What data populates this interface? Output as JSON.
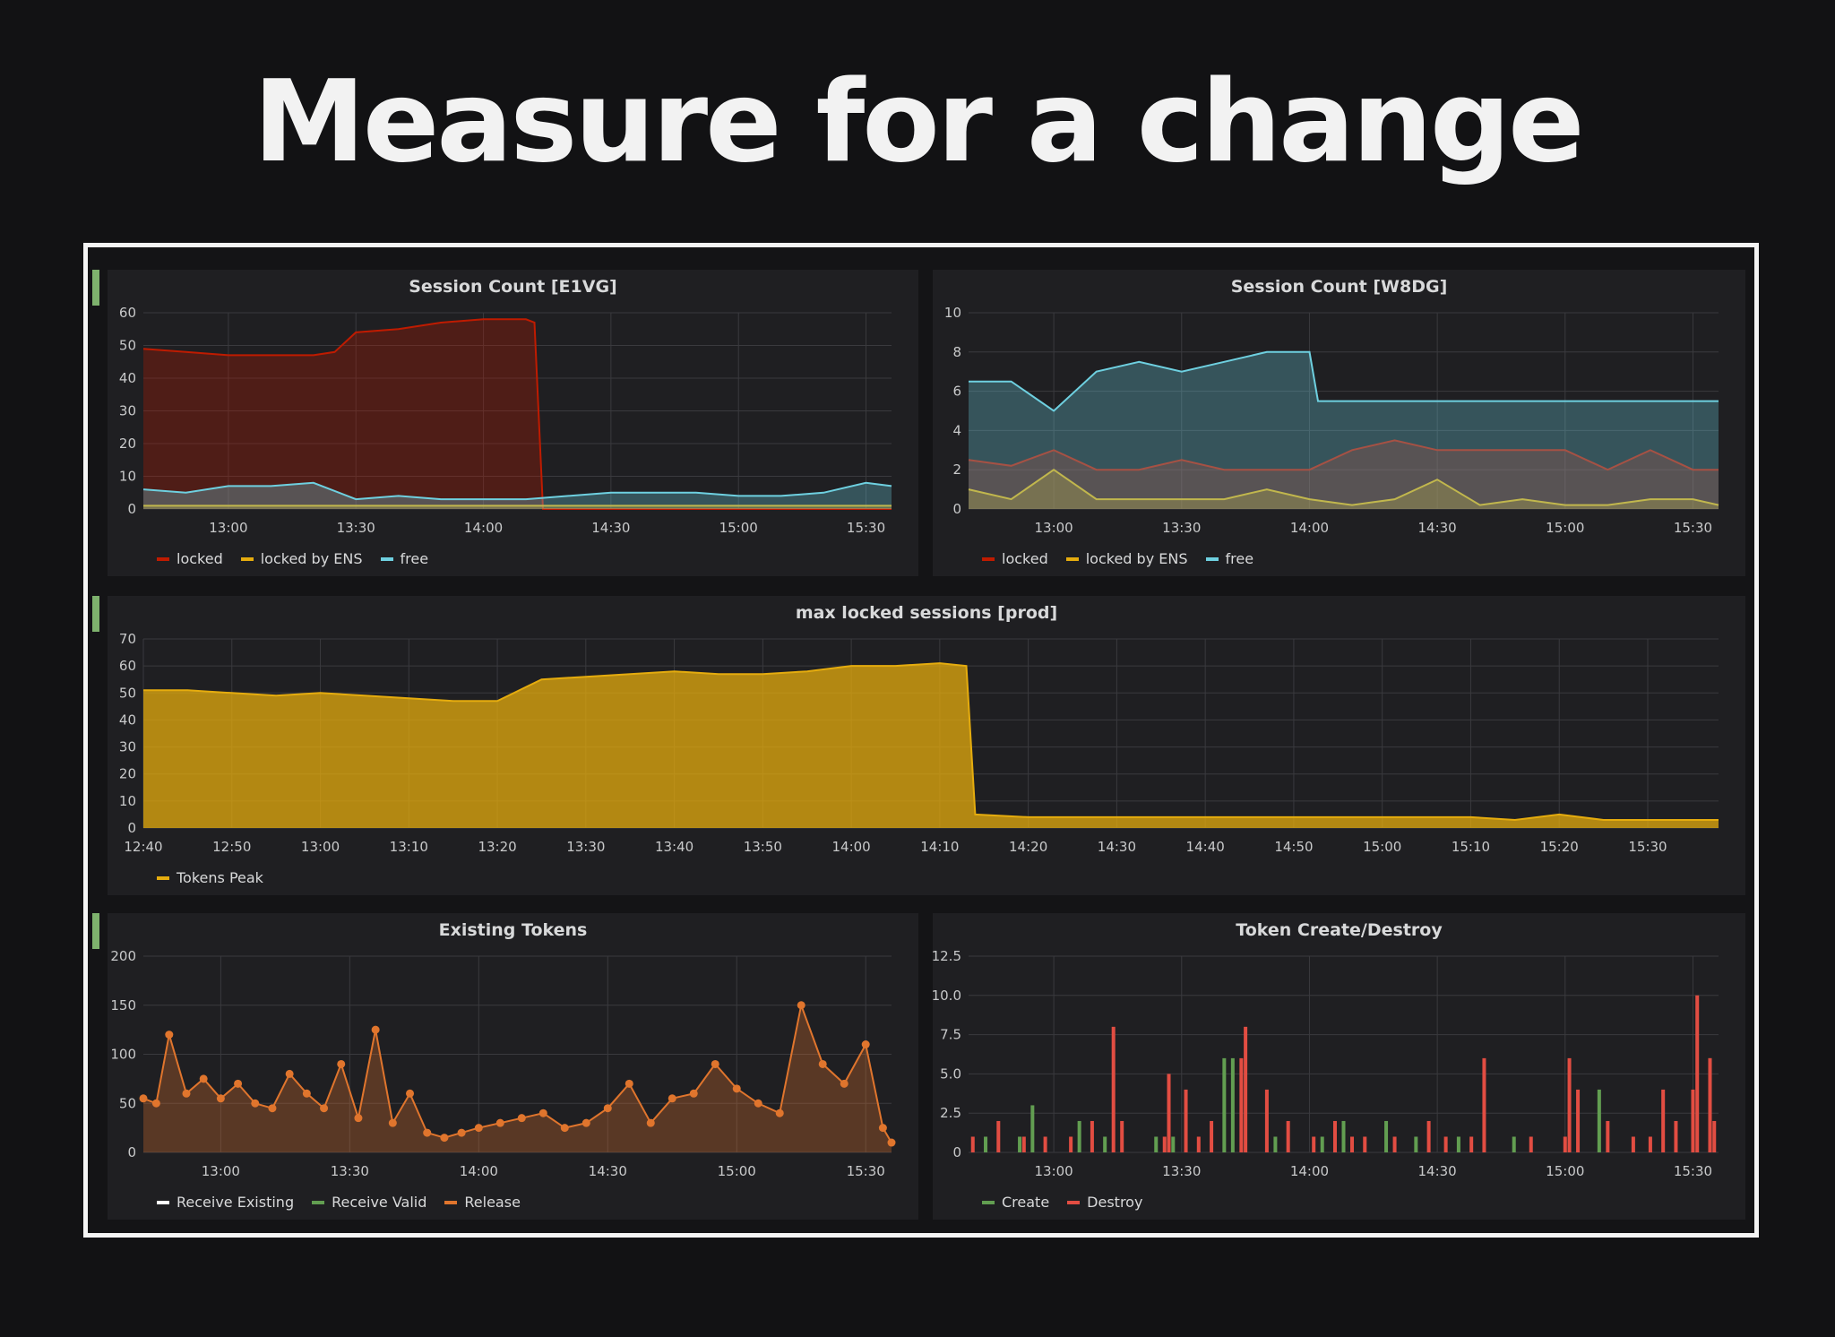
{
  "slide": {
    "title": "Measure for a change"
  },
  "colors": {
    "locked": "#bf1b00",
    "locked_by_ens": "#e5ac0e",
    "free": "#6ed0e0",
    "tokens_peak": "#e5ac0e",
    "receive_existing": "#ffffff",
    "receive_valid": "#629e51",
    "release": "#e0752d",
    "create": "#629e51",
    "destroy": "#e24d42",
    "row_marker": "#7eb26d"
  },
  "chart_data": [
    {
      "type": "area",
      "title": "Session Count [E1VG]",
      "xlabel": "",
      "ylabel": "",
      "x_start": "12:40",
      "x_end": "15:36",
      "xticks": [
        "13:00",
        "13:30",
        "14:00",
        "14:30",
        "15:00",
        "15:30"
      ],
      "yticks": [
        "0",
        "10",
        "20",
        "30",
        "40",
        "50",
        "60"
      ],
      "ylim": [
        0,
        60
      ],
      "grid": true,
      "legend": "bottom-left",
      "series": [
        {
          "name": "locked",
          "x": [
            "12:40",
            "12:50",
            "13:00",
            "13:10",
            "13:20",
            "13:25",
            "13:30",
            "13:40",
            "13:50",
            "14:00",
            "14:10",
            "14:12",
            "14:14",
            "14:20",
            "14:30",
            "14:40",
            "14:50",
            "15:00",
            "15:10",
            "15:20",
            "15:30",
            "15:36"
          ],
          "values": [
            49,
            48,
            47,
            47,
            47,
            48,
            54,
            55,
            57,
            58,
            58,
            57,
            0,
            0,
            0,
            0,
            0,
            0,
            0,
            0,
            0,
            0
          ]
        },
        {
          "name": "locked by ENS",
          "x": [
            "12:40",
            "13:00",
            "13:20",
            "13:40",
            "14:00",
            "14:20",
            "14:40",
            "15:00",
            "15:20",
            "15:36"
          ],
          "values": [
            1,
            1,
            1,
            1,
            1,
            1,
            1,
            1,
            1,
            1
          ]
        },
        {
          "name": "free",
          "x": [
            "12:40",
            "12:50",
            "13:00",
            "13:10",
            "13:20",
            "13:30",
            "13:40",
            "13:50",
            "14:00",
            "14:10",
            "14:20",
            "14:30",
            "14:40",
            "14:50",
            "15:00",
            "15:10",
            "15:20",
            "15:30",
            "15:36"
          ],
          "values": [
            6,
            5,
            7,
            7,
            8,
            3,
            4,
            3,
            3,
            3,
            4,
            5,
            5,
            5,
            4,
            4,
            5,
            8,
            7
          ]
        }
      ]
    },
    {
      "type": "area",
      "title": "Session Count [W8DG]",
      "xlabel": "",
      "ylabel": "",
      "x_start": "12:40",
      "x_end": "15:36",
      "xticks": [
        "13:00",
        "13:30",
        "14:00",
        "14:30",
        "15:00",
        "15:30"
      ],
      "yticks": [
        "0",
        "2",
        "4",
        "6",
        "8",
        "10"
      ],
      "ylim": [
        0,
        10
      ],
      "grid": true,
      "legend": "bottom-left",
      "series": [
        {
          "name": "locked",
          "x": [
            "12:40",
            "12:50",
            "13:00",
            "13:10",
            "13:20",
            "13:30",
            "13:40",
            "13:50",
            "14:00",
            "14:10",
            "14:20",
            "14:30",
            "14:40",
            "14:50",
            "15:00",
            "15:10",
            "15:20",
            "15:30",
            "15:36"
          ],
          "values": [
            2.5,
            2.2,
            3,
            2,
            2,
            2.5,
            2,
            2,
            2,
            3,
            3.5,
            3,
            3,
            3,
            3,
            2,
            3,
            2,
            2
          ]
        },
        {
          "name": "locked by ENS",
          "x": [
            "12:40",
            "12:50",
            "13:00",
            "13:10",
            "13:20",
            "13:30",
            "13:40",
            "13:50",
            "14:00",
            "14:10",
            "14:20",
            "14:30",
            "14:40",
            "14:50",
            "15:00",
            "15:10",
            "15:20",
            "15:30",
            "15:36"
          ],
          "values": [
            1,
            0.5,
            2,
            0.5,
            0.5,
            0.5,
            0.5,
            1,
            0.5,
            0.2,
            0.5,
            1.5,
            0.2,
            0.5,
            0.2,
            0.2,
            0.5,
            0.5,
            0.2
          ]
        },
        {
          "name": "free",
          "x": [
            "12:40",
            "12:50",
            "13:00",
            "13:10",
            "13:20",
            "13:30",
            "13:40",
            "13:50",
            "14:00",
            "14:02",
            "14:10",
            "14:20",
            "14:30",
            "14:40",
            "14:50",
            "15:00",
            "15:10",
            "15:20",
            "15:30",
            "15:36"
          ],
          "values": [
            6.5,
            6.5,
            5,
            7,
            7.5,
            7,
            7.5,
            8,
            8,
            5.5,
            5.5,
            5.5,
            5.5,
            5.5,
            5.5,
            5.5,
            5.5,
            5.5,
            5.5,
            5.5
          ]
        }
      ]
    },
    {
      "type": "area",
      "title": "max locked sessions [prod]",
      "xlabel": "",
      "ylabel": "",
      "x_start": "12:40",
      "x_end": "15:38",
      "xticks": [
        "12:40",
        "12:50",
        "13:00",
        "13:10",
        "13:20",
        "13:30",
        "13:40",
        "13:50",
        "14:00",
        "14:10",
        "14:20",
        "14:30",
        "14:40",
        "14:50",
        "15:00",
        "15:10",
        "15:20",
        "15:30"
      ],
      "yticks": [
        "0",
        "10",
        "20",
        "30",
        "40",
        "50",
        "60",
        "70"
      ],
      "ylim": [
        0,
        70
      ],
      "grid": true,
      "legend": "bottom-left",
      "series": [
        {
          "name": "Tokens Peak",
          "x": [
            "12:40",
            "12:45",
            "12:50",
            "12:55",
            "13:00",
            "13:05",
            "13:10",
            "13:15",
            "13:20",
            "13:25",
            "13:30",
            "13:35",
            "13:40",
            "13:45",
            "13:50",
            "13:55",
            "14:00",
            "14:05",
            "14:10",
            "14:13",
            "14:14",
            "14:20",
            "14:30",
            "14:40",
            "14:50",
            "15:00",
            "15:10",
            "15:15",
            "15:20",
            "15:25",
            "15:30",
            "15:38"
          ],
          "values": [
            51,
            51,
            50,
            49,
            50,
            49,
            48,
            47,
            47,
            55,
            56,
            57,
            58,
            57,
            57,
            58,
            60,
            60,
            61,
            60,
            5,
            4,
            4,
            4,
            4,
            4,
            4,
            3,
            5,
            3,
            3,
            3
          ]
        }
      ]
    },
    {
      "type": "area",
      "title": "Existing Tokens",
      "xlabel": "",
      "ylabel": "",
      "x_start": "12:42",
      "x_end": "15:36",
      "xticks": [
        "13:00",
        "13:30",
        "14:00",
        "14:30",
        "15:00",
        "15:30"
      ],
      "yticks": [
        "0",
        "50",
        "100",
        "150",
        "200"
      ],
      "ylim": [
        0,
        200
      ],
      "grid": true,
      "legend": "bottom-left",
      "series": [
        {
          "name": "Release",
          "x": [
            "12:42",
            "12:45",
            "12:48",
            "12:52",
            "12:56",
            "13:00",
            "13:04",
            "13:08",
            "13:12",
            "13:16",
            "13:20",
            "13:24",
            "13:28",
            "13:32",
            "13:36",
            "13:40",
            "13:44",
            "13:48",
            "13:52",
            "13:56",
            "14:00",
            "14:05",
            "14:10",
            "14:15",
            "14:20",
            "14:25",
            "14:30",
            "14:35",
            "14:40",
            "14:45",
            "14:50",
            "14:55",
            "15:00",
            "15:05",
            "15:10",
            "15:15",
            "15:20",
            "15:25",
            "15:30",
            "15:34",
            "15:36"
          ],
          "values": [
            55,
            50,
            120,
            60,
            75,
            55,
            70,
            50,
            45,
            80,
            60,
            45,
            90,
            35,
            125,
            30,
            60,
            20,
            15,
            20,
            25,
            30,
            35,
            40,
            25,
            30,
            45,
            70,
            30,
            55,
            60,
            90,
            65,
            50,
            40,
            150,
            90,
            70,
            110,
            25,
            10
          ]
        }
      ]
    },
    {
      "type": "bar",
      "title": "Token Create/Destroy",
      "xlabel": "",
      "ylabel": "",
      "x_start": "12:40",
      "x_end": "15:36",
      "xticks": [
        "13:00",
        "13:30",
        "14:00",
        "14:30",
        "15:00",
        "15:30"
      ],
      "yticks": [
        "0",
        "2.5",
        "5.0",
        "7.5",
        "10.0",
        "12.5"
      ],
      "ylim": [
        0,
        12.5
      ],
      "grid": true,
      "legend": "bottom-left",
      "series": [
        {
          "name": "Create",
          "x": [
            "12:44",
            "12:52",
            "12:55",
            "13:06",
            "13:12",
            "13:24",
            "13:28",
            "13:40",
            "13:42",
            "13:52",
            "14:03",
            "14:08",
            "14:18",
            "14:25",
            "14:35",
            "14:48",
            "15:08",
            "15:34"
          ],
          "values": [
            1,
            1,
            3,
            2,
            1,
            1,
            1,
            6,
            6,
            1,
            1,
            2,
            2,
            1,
            1,
            1,
            4,
            6
          ]
        },
        {
          "name": "Destroy",
          "x": [
            "12:41",
            "12:47",
            "12:53",
            "12:58",
            "13:04",
            "13:09",
            "13:14",
            "13:16",
            "13:26",
            "13:27",
            "13:31",
            "13:34",
            "13:37",
            "13:44",
            "13:45",
            "13:50",
            "13:55",
            "14:01",
            "14:06",
            "14:10",
            "14:13",
            "14:20",
            "14:28",
            "14:32",
            "14:38",
            "14:41",
            "14:52",
            "15:00",
            "15:01",
            "15:03",
            "15:10",
            "15:16",
            "15:20",
            "15:23",
            "15:26",
            "15:30",
            "15:31",
            "15:34",
            "15:35"
          ],
          "values": [
            1,
            2,
            1,
            1,
            1,
            2,
            8,
            2,
            1,
            5,
            4,
            1,
            2,
            6,
            8,
            4,
            2,
            1,
            2,
            1,
            1,
            1,
            2,
            1,
            1,
            6,
            1,
            1,
            6,
            4,
            2,
            1,
            1,
            4,
            2,
            4,
            10,
            6,
            2
          ]
        }
      ]
    }
  ]
}
